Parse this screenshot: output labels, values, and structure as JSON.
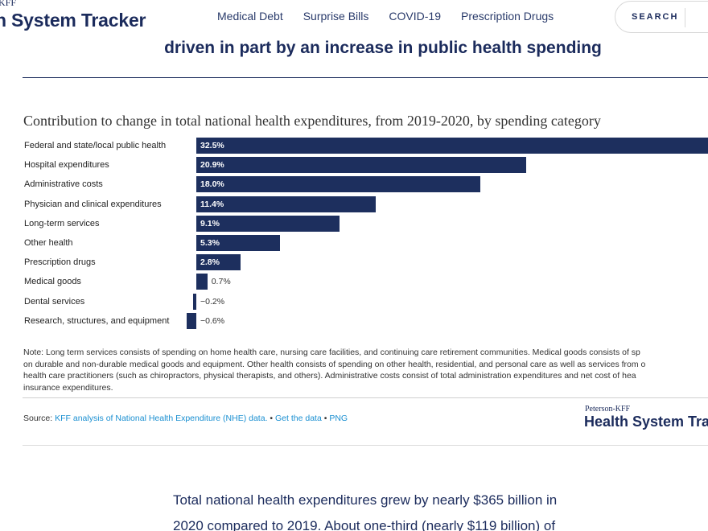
{
  "header": {
    "logo_prefix": "KFF",
    "logo_text": "h System Tracker",
    "nav": [
      "Medical Debt",
      "Surprise Bills",
      "COVID-19",
      "Prescription Drugs"
    ],
    "search_label": "SEARCH"
  },
  "headline": "driven in part by an increase in public health spending",
  "chart_data": {
    "type": "bar",
    "title": "Contribution to change in total national health expenditures, from 2019-2020, by spending category",
    "categories": [
      "Federal and state/local public health",
      "Hospital expenditures",
      "Administrative costs",
      "Physician and clinical expenditures",
      "Long-term services",
      "Other health",
      "Prescription drugs",
      "Medical goods",
      "Dental services",
      "Research, structures, and equipment"
    ],
    "values": [
      32.5,
      20.9,
      18.0,
      11.4,
      9.1,
      5.3,
      2.8,
      0.7,
      -0.2,
      -0.6
    ],
    "value_labels": [
      "32.5%",
      "20.9%",
      "18.0%",
      "11.4%",
      "9.1%",
      "5.3%",
      "2.8%",
      "0.7%",
      "−0.2%",
      "−0.6%"
    ],
    "orientation": "horizontal",
    "bar_color": "#1d2f5e"
  },
  "note_lines": [
    "Note: Long term services consists of spending on home health care, nursing care facilities, and continuing care retirement communities. Medical goods consists of sp",
    "on durable and non-durable medical goods and equipment. Other health consists of spending on other health, residential, and personal care as well as services from o",
    "health care practitioners (such as chiropractors, physical therapists, and others). Administrative costs consist of total administration expenditures and net cost of hea",
    "insurance expenditures."
  ],
  "source": {
    "prefix": "Source: ",
    "link_analysis": "KFF analysis of National Health Expenditure (NHE) data.",
    "sep1": " • ",
    "link_data": "Get the data",
    "sep2": " • ",
    "link_png": "PNG"
  },
  "footer_logo": {
    "prefix": "Peterson-KFF",
    "text": "Health System Tra"
  },
  "paragraph_lines": [
    "Total national health expenditures grew by nearly $365 billion in",
    "2020 compared to 2019. About one-third (nearly $119 billion) of"
  ],
  "colors": {
    "brand_navy": "#1b2b5c",
    "bar": "#1d2f5e",
    "link": "#1a8fd1"
  }
}
